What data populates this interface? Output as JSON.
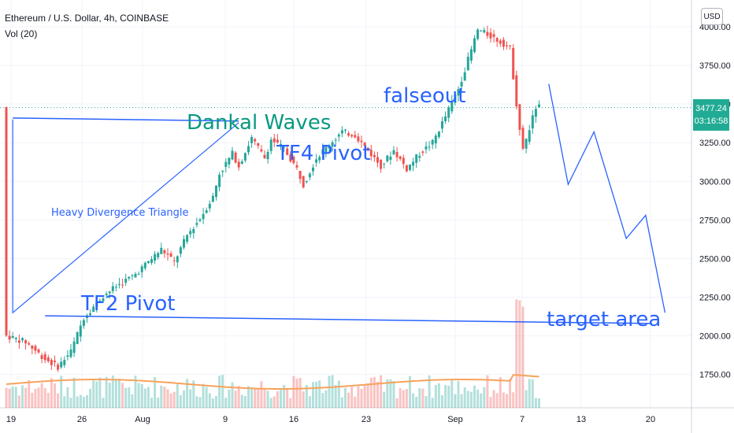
{
  "header": {
    "symbol_line": "Ethereum / U.S. Dollar, 4h, COINBASE",
    "indicator": "Vol (20)"
  },
  "currency_button": "USD",
  "price_tag": {
    "price": "3477.24",
    "countdown": "03:16:58",
    "color": "#22ab94"
  },
  "colors": {
    "up": "#26a69a",
    "down": "#ef5350",
    "drawing": "#2962ff",
    "dankal_text": "#089981",
    "volume_ma": "#f7a35c"
  },
  "chart_data": {
    "type": "candlestick",
    "y_axis": {
      "side": "right",
      "ticks": [
        "4000.00",
        "3750.00",
        "3500.00",
        "3250.00",
        "3000.00",
        "2750.00",
        "2500.00",
        "2250.00",
        "2000.00",
        "1750.00"
      ],
      "range": [
        1610,
        4090
      ]
    },
    "x_axis": {
      "ticks": [
        "19",
        "26",
        "Aug",
        "9",
        "16",
        "23",
        "Sep",
        "7",
        "13",
        "20"
      ]
    },
    "current_price": 3477.24,
    "price_path": [
      [
        0,
        2000
      ],
      [
        3,
        1960
      ],
      [
        6,
        1850
      ],
      [
        8,
        1800
      ],
      [
        10,
        1900
      ],
      [
        12,
        2120
      ],
      [
        15,
        2260
      ],
      [
        17,
        2320
      ],
      [
        20,
        2400
      ],
      [
        22,
        2480
      ],
      [
        24,
        2560
      ],
      [
        26,
        2480
      ],
      [
        28,
        2650
      ],
      [
        30,
        2760
      ],
      [
        32,
        2900
      ],
      [
        33,
        3050
      ],
      [
        35,
        3180
      ],
      [
        36,
        3100
      ],
      [
        38,
        3280
      ],
      [
        40,
        3150
      ],
      [
        41,
        3270
      ],
      [
        43,
        3210
      ],
      [
        45,
        3080
      ],
      [
        46,
        2980
      ],
      [
        48,
        3150
      ],
      [
        50,
        3240
      ],
      [
        52,
        3320
      ],
      [
        54,
        3300
      ],
      [
        56,
        3200
      ],
      [
        58,
        3100
      ],
      [
        60,
        3200
      ],
      [
        62,
        3080
      ],
      [
        64,
        3180
      ],
      [
        66,
        3250
      ],
      [
        68,
        3420
      ],
      [
        70,
        3600
      ],
      [
        72,
        3850
      ],
      [
        73,
        3980
      ],
      [
        75,
        3940
      ],
      [
        77,
        3890
      ],
      [
        78,
        3860
      ],
      [
        79,
        3500
      ],
      [
        80,
        3200
      ],
      [
        82,
        3480
      ]
    ],
    "annotations": [
      {
        "text": "Dankal Waves",
        "color": "#089981"
      },
      {
        "text": "TF4 Pivot",
        "color": "#2962ff"
      },
      {
        "text": "falseout",
        "color": "#2962ff"
      },
      {
        "text": "Heavy Divergence Triangle",
        "color": "#2962ff"
      },
      {
        "text": "TF2 Pivot",
        "color": "#2962ff"
      },
      {
        "text": "target area",
        "color": "#2962ff"
      }
    ],
    "drawings": {
      "triangle": [
        [
          1,
          3400
        ],
        [
          1,
          2150
        ],
        [
          36,
          3380
        ]
      ],
      "triangle_top_line": [
        [
          1,
          3410
        ],
        [
          36,
          3390
        ]
      ],
      "support_line": [
        [
          6,
          2130
        ],
        [
          100,
          2080
        ]
      ],
      "projected_path": [
        [
          84,
          3630
        ],
        [
          87,
          2980
        ],
        [
          91,
          3320
        ],
        [
          96,
          2630
        ],
        [
          99,
          2780
        ],
        [
          102,
          2150
        ]
      ]
    },
    "grid": true,
    "legend": "top-left"
  }
}
